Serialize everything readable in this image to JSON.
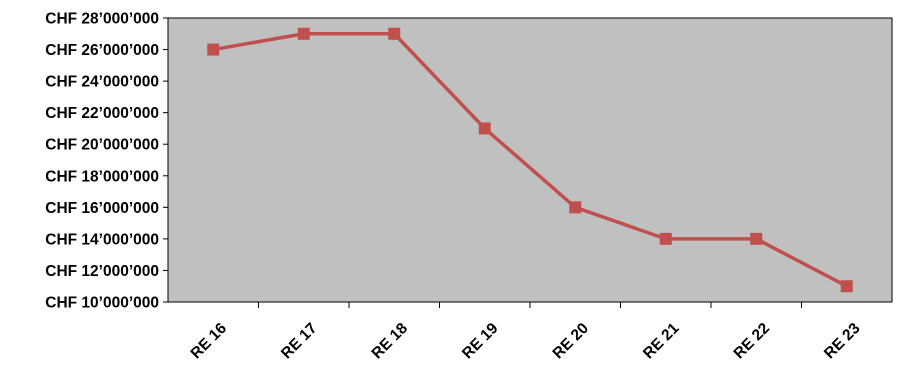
{
  "chart_data": {
    "type": "line",
    "categories": [
      "RE 16",
      "RE 17",
      "RE 18",
      "RE 19",
      "RE 20",
      "RE 21",
      "RE 22",
      "RE 23"
    ],
    "series": [
      {
        "values": [
          26000000,
          27000000,
          27000000,
          21000000,
          16000000,
          14000000,
          14000000,
          11000000
        ]
      }
    ],
    "y_ticks": [
      10000000,
      12000000,
      14000000,
      16000000,
      18000000,
      20000000,
      22000000,
      24000000,
      26000000,
      28000000
    ],
    "y_tick_labels": [
      "CHF 10’000’000",
      "CHF 12’000’000",
      "CHF 14’000’000",
      "CHF 16’000’000",
      "CHF 18’000’000",
      "CHF 20’000’000",
      "CHF 22’000’000",
      "CHF 24’000’000",
      "CHF 26’000’000",
      "CHF 28’000’000"
    ],
    "ylim": [
      10000000,
      28000000
    ],
    "title": "",
    "xlabel": "",
    "ylabel": "",
    "grid": false,
    "legend": "none",
    "colors": {
      "plot_background": "#c0c0c0",
      "series_line": "#c0504d"
    }
  }
}
